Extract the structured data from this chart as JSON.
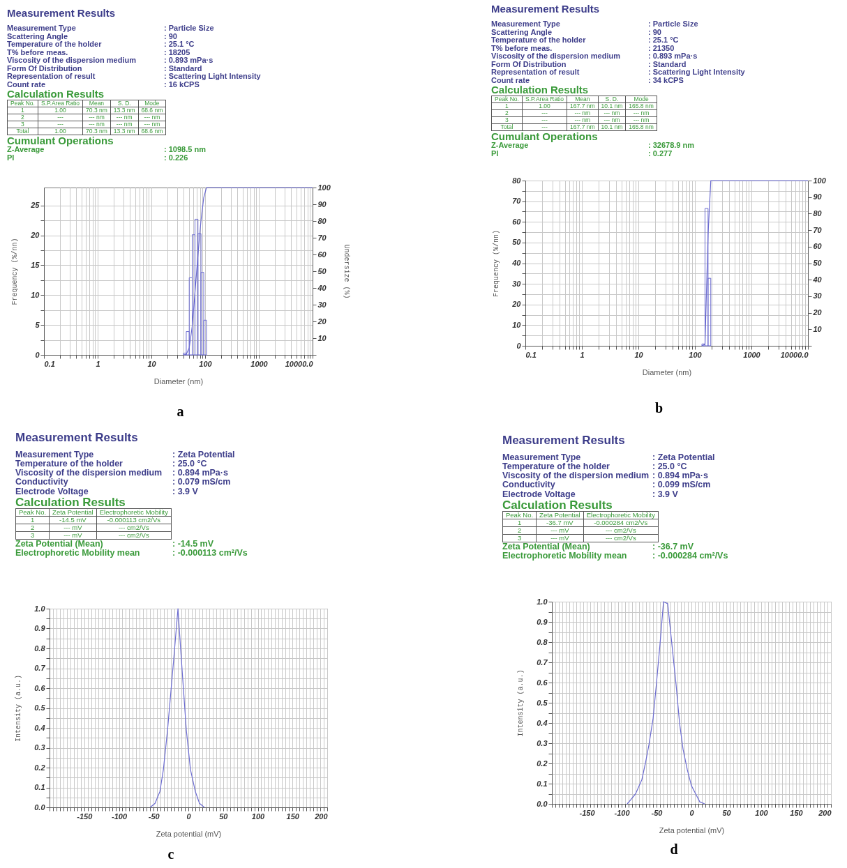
{
  "chart_data": [
    {
      "type": "other",
      "title": "Measurement Results",
      "annotations": [
        "Measurement Type",
        ": Particle Size",
        "Scattering Angle",
        ": 90",
        "Temperature of the holder",
        ": 25.1 °C",
        "T% before meas.",
        ": 18205",
        "Viscosity of the dispersion medium",
        ": 0.893 mPa·s",
        "Form Of Distribution",
        ": Standard",
        "Representation of result",
        ": Scattering Light Intensity",
        "Count rate",
        ": 16 kCPS",
        "Calculation Results",
        "Peak No.",
        "S.P.Area Ratio",
        "Mean",
        "S. D.",
        "Mode",
        "1",
        "1.00",
        "70.3 nm",
        "13.3 nm",
        "68.6 nm",
        "2",
        "---",
        "--- nm",
        "--- nm",
        "--- nm",
        "3",
        "---",
        "--- nm",
        "--- nm",
        "--- nm",
        "Total",
        "1.00",
        "70.3 nm",
        "13.3 nm",
        "68.6 nm",
        "Cumulant Operations",
        "Z-Average",
        ": 1098.5 nm",
        "PI",
        ": 0.226"
      ]
    },
    {
      "type": "histogram",
      "xlabel": "Diameter (nm)",
      "ylabel": "Frequency (%/nn)",
      "y2label": "Undersize (%)",
      "log": "x",
      "grid": true,
      "annotations": [
        "a"
      ],
      "xlim": [
        0.1,
        10000
      ],
      "xticks": [
        0.1,
        {
          "value": 0.2,
          "label": null
        },
        {
          "value": 0.3,
          "label": null
        },
        {
          "value": 0.4,
          "label": null
        },
        {
          "value": 0.5,
          "label": null
        },
        {
          "value": 0.6,
          "label": null
        },
        {
          "value": 0.7,
          "label": null
        },
        {
          "value": 0.8,
          "label": null
        },
        {
          "value": 0.9,
          "label": null
        },
        1,
        {
          "value": 2,
          "label": null
        },
        {
          "value": 3,
          "label": null
        },
        {
          "value": 4,
          "label": null
        },
        {
          "value": 5,
          "label": null
        },
        {
          "value": 6,
          "label": null
        },
        {
          "value": 7,
          "label": null
        },
        {
          "value": 8,
          "label": null
        },
        {
          "value": 9,
          "label": null
        },
        10,
        {
          "value": 20,
          "label": null
        },
        {
          "value": 30,
          "label": null
        },
        {
          "value": 40,
          "label": null
        },
        {
          "value": 50,
          "label": null
        },
        {
          "value": 60,
          "label": null
        },
        {
          "value": 70,
          "label": null
        },
        {
          "value": 80,
          "label": null
        },
        {
          "value": 90,
          "label": null
        },
        100,
        {
          "value": 200,
          "label": null
        },
        {
          "value": 300,
          "label": null
        },
        {
          "value": 400,
          "label": null
        },
        {
          "value": 500,
          "label": null
        },
        {
          "value": 600,
          "label": null
        },
        {
          "value": 700,
          "label": null
        },
        {
          "value": 800,
          "label": null
        },
        {
          "value": 900,
          "label": null
        },
        1000,
        {
          "value": 2000,
          "label": null
        },
        {
          "value": 3000,
          "label": null
        },
        {
          "value": 4000,
          "label": null
        },
        {
          "value": 5000,
          "label": null
        },
        {
          "value": 6000,
          "label": null
        },
        {
          "value": 7000,
          "label": null
        },
        {
          "value": 8000,
          "label": null
        },
        {
          "value": 9000,
          "label": null
        },
        {
          "value": 10000,
          "label": "10000.0"
        }
      ],
      "ylim": [
        0,
        28
      ],
      "yticks": [
        0,
        {
          "value": 2.5,
          "label": null
        },
        5,
        {
          "value": 7.5,
          "label": null
        },
        10,
        {
          "value": 12.5,
          "label": null
        },
        15,
        {
          "value": 17.5,
          "label": null
        },
        20,
        {
          "value": 22.5,
          "label": null
        },
        25
      ],
      "y2lim": [
        0,
        100
      ],
      "y2ticks": [
        {
          "value": 0,
          "label": null
        },
        10,
        20,
        30,
        40,
        50,
        60,
        70,
        80,
        90,
        100
      ],
      "series": [
        {
          "type": "histogram",
          "color": "#6b6bd0",
          "bins": [
            39.5,
            44.5,
            50.6,
            57.5,
            64.7,
            73.6,
            83.7,
            94.3,
            106
          ],
          "values": [
            0.3,
            3.9,
            12.9,
            20.1,
            22.7,
            20.3,
            13.8,
            5.8
          ]
        },
        {
          "type": "line",
          "axis": "y2",
          "color": "#6b6bd0",
          "x": [
            39.5,
            44.5,
            50.6,
            57.5,
            64.7,
            73.6,
            83.7,
            94.3,
            106,
            10000
          ],
          "values": [
            0,
            0.3,
            4.2,
            17.1,
            37.2,
            59.9,
            80.2,
            94,
            100,
            100
          ]
        }
      ]
    },
    {
      "type": "other",
      "title": "Measurement Results",
      "annotations": [
        "Measurement Type",
        ": Particle Size",
        "Scattering Angle",
        ": 90",
        "Temperature of the holder",
        ": 25.1 °C",
        "T% before meas.",
        ": 21350",
        "Viscosity of the dispersion medium",
        ": 0.893 mPa·s",
        "Form Of Distribution",
        ": Standard",
        "Representation of result",
        ": Scattering Light Intensity",
        "Count rate",
        ": 34 kCPS",
        "Calculation Results",
        "Peak No.",
        "S.P.Area Ratio",
        "Mean",
        "S. D.",
        "Mode",
        "1",
        "1.00",
        "167.7 nm",
        "10.1 nm",
        "165.8 nm",
        "2",
        "---",
        "--- nm",
        "--- nm",
        "--- nm",
        "3",
        "---",
        "--- nm",
        "--- nm",
        "--- nm",
        "Total",
        "---",
        "167.7 nm",
        "10.1 nm",
        "165.8 nm",
        "Cumulant Operations",
        "Z-Average",
        ": 32678.9 nm",
        "PI",
        ": 0.277"
      ]
    },
    {
      "type": "histogram",
      "xlabel": "Diameter (nm)",
      "ylabel": "Frequency (%/nn)",
      "log": "x",
      "grid": true,
      "annotations": [
        "b"
      ],
      "xlim": [
        0.1,
        10000
      ],
      "xticks": [
        0.1,
        {
          "value": 0.2,
          "label": null
        },
        {
          "value": 0.3,
          "label": null
        },
        {
          "value": 0.4,
          "label": null
        },
        {
          "value": 0.5,
          "label": null
        },
        {
          "value": 0.6,
          "label": null
        },
        {
          "value": 0.7,
          "label": null
        },
        {
          "value": 0.8,
          "label": null
        },
        {
          "value": 0.9,
          "label": null
        },
        1,
        {
          "value": 2,
          "label": null
        },
        {
          "value": 3,
          "label": null
        },
        {
          "value": 4,
          "label": null
        },
        {
          "value": 5,
          "label": null
        },
        {
          "value": 6,
          "label": null
        },
        {
          "value": 7,
          "label": null
        },
        {
          "value": 8,
          "label": null
        },
        {
          "value": 9,
          "label": null
        },
        10,
        {
          "value": 20,
          "label": null
        },
        {
          "value": 30,
          "label": null
        },
        {
          "value": 40,
          "label": null
        },
        {
          "value": 50,
          "label": null
        },
        {
          "value": 60,
          "label": null
        },
        {
          "value": 70,
          "label": null
        },
        {
          "value": 80,
          "label": null
        },
        {
          "value": 90,
          "label": null
        },
        100,
        {
          "value": 200,
          "label": null
        },
        {
          "value": 300,
          "label": null
        },
        {
          "value": 400,
          "label": null
        },
        {
          "value": 500,
          "label": null
        },
        {
          "value": 600,
          "label": null
        },
        {
          "value": 700,
          "label": null
        },
        {
          "value": 800,
          "label": null
        },
        {
          "value": 900,
          "label": null
        },
        1000,
        {
          "value": 2000,
          "label": null
        },
        {
          "value": 3000,
          "label": null
        },
        {
          "value": 4000,
          "label": null
        },
        {
          "value": 5000,
          "label": null
        },
        {
          "value": 6000,
          "label": null
        },
        {
          "value": 7000,
          "label": null
        },
        {
          "value": 8000,
          "label": null
        },
        {
          "value": 9000,
          "label": null
        },
        {
          "value": 10000,
          "label": "10000.0"
        }
      ],
      "ylim": [
        0,
        80
      ],
      "yticks": [
        0,
        {
          "value": 5,
          "label": null
        },
        10,
        {
          "value": 15,
          "label": null
        },
        20,
        {
          "value": 25,
          "label": null
        },
        30,
        {
          "value": 35,
          "label": null
        },
        40,
        {
          "value": 45,
          "label": null
        },
        50,
        {
          "value": 55,
          "label": null
        },
        60,
        {
          "value": 65,
          "label": null
        },
        70,
        {
          "value": 75,
          "label": null
        },
        80
      ],
      "y2lim": [
        0,
        100
      ],
      "y2ticks": [
        {
          "value": 0,
          "label": null
        },
        10,
        20,
        30,
        40,
        50,
        60,
        70,
        80,
        90,
        100
      ],
      "series": [
        {
          "type": "histogram",
          "color": "#6b6bd0",
          "bins": [
            133,
            151,
            171,
            191
          ],
          "values": [
            0.9,
            66.5,
            32.7
          ]
        },
        {
          "type": "line",
          "axis": "y2",
          "color": "#6b6bd0",
          "x": [
            133,
            151,
            171,
            191,
            10000
          ],
          "values": [
            0,
            0.9,
            67.4,
            100,
            100
          ]
        }
      ]
    },
    {
      "type": "other",
      "title": "Measurement Results",
      "annotations": [
        "Measurement Type",
        ": Zeta Potential",
        "Temperature of the holder",
        ": 25.0 °C",
        "Viscosity of the dispersion medium",
        ": 0.894 mPa·s",
        "Conductivity",
        ": 0.079 mS/cm",
        "Electrode Voltage",
        ": 3.9 V",
        "Calculation Results",
        "Peak No.",
        "Zeta Potential",
        "Electrophoretic Mobility",
        "1",
        "-14.5 mV",
        "-0.000113 cm2/Vs",
        "2",
        "--- mV",
        "--- cm2/Vs",
        "3",
        "--- mV",
        "--- cm2/Vs",
        "Zeta Potential (Mean)",
        ": -14.5 mV",
        "Electrophoretic Mobility mean",
        ": -0.000113 cm²/Vs"
      ]
    },
    {
      "type": "line",
      "xlabel": "Zeta potential (mV)",
      "ylabel": "Intensity (a.u.)",
      "grid": true,
      "annotations": [
        "c"
      ],
      "xlim": [
        -200,
        200
      ],
      "xticks": [
        {
          "value": -200,
          "label": null
        },
        {
          "value": -195,
          "label": null
        },
        {
          "value": -190,
          "label": null
        },
        {
          "value": -185,
          "label": null
        },
        {
          "value": -180,
          "label": null
        },
        {
          "value": -175,
          "label": null
        },
        {
          "value": -170,
          "label": null
        },
        {
          "value": -165,
          "label": null
        },
        {
          "value": -160,
          "label": null
        },
        {
          "value": -155,
          "label": null
        },
        -150,
        {
          "value": -145,
          "label": null
        },
        {
          "value": -140,
          "label": null
        },
        {
          "value": -135,
          "label": null
        },
        {
          "value": -130,
          "label": null
        },
        {
          "value": -125,
          "label": null
        },
        {
          "value": -120,
          "label": null
        },
        {
          "value": -115,
          "label": null
        },
        {
          "value": -110,
          "label": null
        },
        {
          "value": -105,
          "label": null
        },
        -100,
        {
          "value": -95,
          "label": null
        },
        {
          "value": -90,
          "label": null
        },
        {
          "value": -85,
          "label": null
        },
        {
          "value": -80,
          "label": null
        },
        {
          "value": -75,
          "label": null
        },
        {
          "value": -70,
          "label": null
        },
        {
          "value": -65,
          "label": null
        },
        {
          "value": -60,
          "label": null
        },
        {
          "value": -55,
          "label": null
        },
        -50,
        {
          "value": -45,
          "label": null
        },
        {
          "value": -40,
          "label": null
        },
        {
          "value": -35,
          "label": null
        },
        {
          "value": -30,
          "label": null
        },
        {
          "value": -25,
          "label": null
        },
        {
          "value": -20,
          "label": null
        },
        {
          "value": -15,
          "label": null
        },
        {
          "value": -10,
          "label": null
        },
        {
          "value": -5,
          "label": null
        },
        0,
        {
          "value": 5,
          "label": null
        },
        {
          "value": 10,
          "label": null
        },
        {
          "value": 15,
          "label": null
        },
        {
          "value": 20,
          "label": null
        },
        {
          "value": 25,
          "label": null
        },
        {
          "value": 30,
          "label": null
        },
        {
          "value": 35,
          "label": null
        },
        {
          "value": 40,
          "label": null
        },
        {
          "value": 45,
          "label": null
        },
        50,
        {
          "value": 55,
          "label": null
        },
        {
          "value": 60,
          "label": null
        },
        {
          "value": 65,
          "label": null
        },
        {
          "value": 70,
          "label": null
        },
        {
          "value": 75,
          "label": null
        },
        {
          "value": 80,
          "label": null
        },
        {
          "value": 85,
          "label": null
        },
        {
          "value": 90,
          "label": null
        },
        {
          "value": 95,
          "label": null
        },
        100,
        {
          "value": 105,
          "label": null
        },
        {
          "value": 110,
          "label": null
        },
        {
          "value": 115,
          "label": null
        },
        {
          "value": 120,
          "label": null
        },
        {
          "value": 125,
          "label": null
        },
        {
          "value": 130,
          "label": null
        },
        {
          "value": 135,
          "label": null
        },
        {
          "value": 140,
          "label": null
        },
        {
          "value": 145,
          "label": null
        },
        150,
        {
          "value": 155,
          "label": null
        },
        {
          "value": 160,
          "label": null
        },
        {
          "value": 165,
          "label": null
        },
        {
          "value": 170,
          "label": null
        },
        {
          "value": 175,
          "label": null
        },
        {
          "value": 180,
          "label": null
        },
        {
          "value": 185,
          "label": null
        },
        {
          "value": 190,
          "label": null
        },
        {
          "value": 195,
          "label": null
        },
        200
      ],
      "ylim": [
        0,
        1
      ],
      "yticks": [
        {
          "value": 0,
          "label": "0.0"
        },
        {
          "value": 0.05,
          "label": null
        },
        0.1,
        {
          "value": 0.15,
          "label": null
        },
        0.2,
        {
          "value": 0.25,
          "label": null
        },
        0.3,
        {
          "value": 0.35,
          "label": null
        },
        0.4,
        {
          "value": 0.45,
          "label": null
        },
        0.5,
        {
          "value": 0.55,
          "label": null
        },
        0.6,
        {
          "value": 0.65,
          "label": null
        },
        0.7,
        {
          "value": 0.75,
          "label": null
        },
        0.8,
        {
          "value": 0.85,
          "label": null
        },
        0.9,
        {
          "value": 0.95,
          "label": null
        },
        {
          "value": 1,
          "label": "1.0"
        }
      ],
      "series": [
        {
          "color": "#6b6bd0",
          "x": [
            -55,
            -48,
            -41,
            -36,
            -30,
            -26,
            -21,
            -15,
            -11,
            -7,
            -3,
            3,
            10,
            16,
            23
          ],
          "values": [
            0,
            0.02,
            0.08,
            0.19,
            0.39,
            0.55,
            0.75,
            1,
            0.79,
            0.59,
            0.39,
            0.19,
            0.08,
            0.02,
            0
          ]
        }
      ]
    },
    {
      "type": "other",
      "title": "Measurement Results",
      "annotations": [
        "Measurement Type",
        ": Zeta Potential",
        "Temperature of the holder",
        ": 25.0 °C",
        "Viscosity of the dispersion medium",
        ": 0.894 mPa·s",
        "Conductivity",
        ": 0.099 mS/cm",
        "Electrode Voltage",
        ": 3.9 V",
        "Calculation Results",
        "Peak No.",
        "Zeta Potential",
        "Electrophoretic Mobility",
        "1",
        "-36.7 mV",
        "-0.000284 cm2/Vs",
        "2",
        "--- mV",
        "--- cm2/Vs",
        "3",
        "--- mV",
        "--- cm2/Vs",
        "Zeta Potential (Mean)",
        ": -36.7 mV",
        "Electrophoretic Mobility mean",
        ": -0.000284 cm²/Vs"
      ]
    },
    {
      "type": "line",
      "xlabel": "Zeta potential (mV)",
      "ylabel": "Intensity (a.u.)",
      "grid": true,
      "annotations": [
        "d"
      ],
      "xlim": [
        -200,
        200
      ],
      "xticks": [
        {
          "value": -200,
          "label": null
        },
        {
          "value": -195,
          "label": null
        },
        {
          "value": -190,
          "label": null
        },
        {
          "value": -185,
          "label": null
        },
        {
          "value": -180,
          "label": null
        },
        {
          "value": -175,
          "label": null
        },
        {
          "value": -170,
          "label": null
        },
        {
          "value": -165,
          "label": null
        },
        {
          "value": -160,
          "label": null
        },
        {
          "value": -155,
          "label": null
        },
        -150,
        {
          "value": -145,
          "label": null
        },
        {
          "value": -140,
          "label": null
        },
        {
          "value": -135,
          "label": null
        },
        {
          "value": -130,
          "label": null
        },
        {
          "value": -125,
          "label": null
        },
        {
          "value": -120,
          "label": null
        },
        {
          "value": -115,
          "label": null
        },
        {
          "value": -110,
          "label": null
        },
        {
          "value": -105,
          "label": null
        },
        -100,
        {
          "value": -95,
          "label": null
        },
        {
          "value": -90,
          "label": null
        },
        {
          "value": -85,
          "label": null
        },
        {
          "value": -80,
          "label": null
        },
        {
          "value": -75,
          "label": null
        },
        {
          "value": -70,
          "label": null
        },
        {
          "value": -65,
          "label": null
        },
        {
          "value": -60,
          "label": null
        },
        {
          "value": -55,
          "label": null
        },
        -50,
        {
          "value": -45,
          "label": null
        },
        {
          "value": -40,
          "label": null
        },
        {
          "value": -35,
          "label": null
        },
        {
          "value": -30,
          "label": null
        },
        {
          "value": -25,
          "label": null
        },
        {
          "value": -20,
          "label": null
        },
        {
          "value": -15,
          "label": null
        },
        {
          "value": -10,
          "label": null
        },
        {
          "value": -5,
          "label": null
        },
        0,
        {
          "value": 5,
          "label": null
        },
        {
          "value": 10,
          "label": null
        },
        {
          "value": 15,
          "label": null
        },
        {
          "value": 20,
          "label": null
        },
        {
          "value": 25,
          "label": null
        },
        {
          "value": 30,
          "label": null
        },
        {
          "value": 35,
          "label": null
        },
        {
          "value": 40,
          "label": null
        },
        {
          "value": 45,
          "label": null
        },
        50,
        {
          "value": 55,
          "label": null
        },
        {
          "value": 60,
          "label": null
        },
        {
          "value": 65,
          "label": null
        },
        {
          "value": 70,
          "label": null
        },
        {
          "value": 75,
          "label": null
        },
        {
          "value": 80,
          "label": null
        },
        {
          "value": 85,
          "label": null
        },
        {
          "value": 90,
          "label": null
        },
        {
          "value": 95,
          "label": null
        },
        100,
        {
          "value": 105,
          "label": null
        },
        {
          "value": 110,
          "label": null
        },
        {
          "value": 115,
          "label": null
        },
        {
          "value": 120,
          "label": null
        },
        {
          "value": 125,
          "label": null
        },
        {
          "value": 130,
          "label": null
        },
        {
          "value": 135,
          "label": null
        },
        {
          "value": 140,
          "label": null
        },
        {
          "value": 145,
          "label": null
        },
        150,
        {
          "value": 155,
          "label": null
        },
        {
          "value": 160,
          "label": null
        },
        {
          "value": 165,
          "label": null
        },
        {
          "value": 170,
          "label": null
        },
        {
          "value": 175,
          "label": null
        },
        {
          "value": 180,
          "label": null
        },
        {
          "value": 185,
          "label": null
        },
        {
          "value": 190,
          "label": null
        },
        {
          "value": 195,
          "label": null
        },
        200
      ],
      "ylim": [
        0,
        1
      ],
      "yticks": [
        {
          "value": 0,
          "label": "0.0"
        },
        {
          "value": 0.05,
          "label": null
        },
        0.1,
        {
          "value": 0.15,
          "label": null
        },
        0.2,
        {
          "value": 0.25,
          "label": null
        },
        0.3,
        {
          "value": 0.35,
          "label": null
        },
        0.4,
        {
          "value": 0.45,
          "label": null
        },
        0.5,
        {
          "value": 0.55,
          "label": null
        },
        0.6,
        {
          "value": 0.65,
          "label": null
        },
        0.7,
        {
          "value": 0.75,
          "label": null
        },
        0.8,
        {
          "value": 0.85,
          "label": null
        },
        0.9,
        {
          "value": 0.95,
          "label": null
        },
        {
          "value": 1,
          "label": "1.0"
        }
      ],
      "series": [
        {
          "color": "#6b6bd0",
          "x": [
            -92,
            -87,
            -80,
            -71,
            -66,
            -61,
            -55,
            -50,
            -45,
            -40,
            -34,
            -28,
            -22,
            -17,
            -12,
            -6,
            0,
            6,
            12,
            19
          ],
          "values": [
            0,
            0.02,
            0.05,
            0.12,
            0.2,
            0.29,
            0.42,
            0.6,
            0.79,
            1,
            0.99,
            0.79,
            0.59,
            0.4,
            0.27,
            0.17,
            0.09,
            0.05,
            0.01,
            0
          ]
        }
      ]
    }
  ]
}
